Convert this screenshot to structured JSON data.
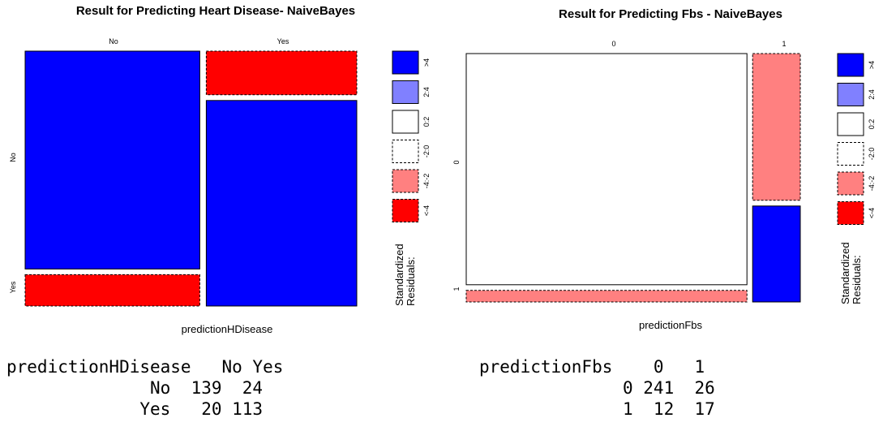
{
  "colors": {
    "high_positive": "#0000FF",
    "mid_positive": "#8080FF",
    "neutral": "#FFFFFF",
    "mid_negative": "#FF8080",
    "high_negative": "#FF0000"
  },
  "chart_data": [
    {
      "type": "mosaic",
      "title": "Result for Predicting Heart Disease- NaiveBayes",
      "xlabel": "predictionHDisease",
      "col_categories": [
        "No",
        "Yes"
      ],
      "row_categories": [
        "No",
        "Yes"
      ],
      "counts": [
        [
          139,
          20
        ],
        [
          24,
          113
        ]
      ],
      "residual_class": [
        [
          "high_positive",
          "high_negative"
        ],
        [
          "high_negative",
          "high_positive"
        ]
      ],
      "legend_title": "Standardized Residuals:",
      "legend_entries": [
        {
          "label": ">4",
          "color": "high_positive",
          "dashed": false
        },
        {
          "label": "2:4",
          "color": "mid_positive",
          "dashed": false
        },
        {
          "label": "0:2",
          "color": "neutral",
          "dashed": false
        },
        {
          "label": "-2:0",
          "color": "neutral",
          "dashed": true
        },
        {
          "label": "-4:-2",
          "color": "mid_negative",
          "dashed": true
        },
        {
          "label": "<-4",
          "color": "high_negative",
          "dashed": true
        }
      ],
      "table": {
        "header": "predictionHDisease   No Yes",
        "rows": [
          "              No  139  24",
          "             Yes   20 113"
        ]
      }
    },
    {
      "type": "mosaic",
      "title": "Result for Predicting Fbs - NaiveBayes",
      "xlabel": "predictionFbs",
      "col_categories": [
        "0",
        "1"
      ],
      "row_categories": [
        "0",
        "1"
      ],
      "counts": [
        [
          241,
          12
        ],
        [
          26,
          17
        ]
      ],
      "residual_class": [
        [
          "neutral",
          "mid_negative"
        ],
        [
          "mid_negative",
          "high_positive"
        ]
      ],
      "legend_title": "Standardized Residuals:",
      "legend_entries": [
        {
          "label": ">4",
          "color": "high_positive",
          "dashed": false
        },
        {
          "label": "2:4",
          "color": "mid_positive",
          "dashed": false
        },
        {
          "label": "0:2",
          "color": "neutral",
          "dashed": false
        },
        {
          "label": "-2:0",
          "color": "neutral",
          "dashed": true
        },
        {
          "label": "-4:-2",
          "color": "mid_negative",
          "dashed": true
        },
        {
          "label": "<-4",
          "color": "high_negative",
          "dashed": true
        }
      ],
      "table": {
        "header": "predictionFbs    0   1",
        "rows": [
          "              0 241  26",
          "              1  12  17"
        ]
      }
    }
  ]
}
